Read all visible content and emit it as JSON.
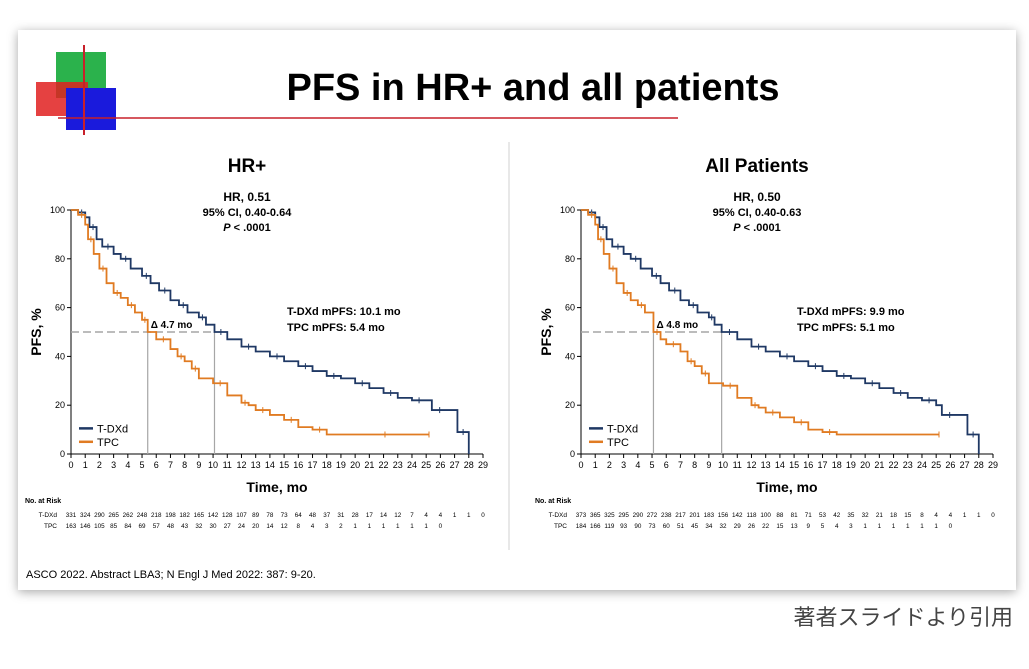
{
  "slide": {
    "title": "PFS in HR+ and all patients",
    "footnote": "ASCO 2022. Abstract LBA3; N Engl J Med 2022: 387: 9-20.",
    "colors": {
      "logo_green": "#2bb24c",
      "logo_red": "#e02020",
      "logo_blue": "#1a1adc",
      "rule": "#c8202a"
    }
  },
  "caption": "著者スライドより引用",
  "colors": {
    "tdxd": "#1f3864",
    "tpc": "#e07b22",
    "reference": "#a6a6a6",
    "text": "#000000"
  },
  "chart_data": [
    {
      "type": "line",
      "title": "HR+",
      "stats": {
        "hr": "HR, 0.51",
        "ci": "95% CI, 0.40-0.64",
        "p_label": "P",
        "p_value": " < .0001"
      },
      "xlabel": "Time, mo",
      "ylabel": "PFS, %",
      "xlim": [
        0,
        29
      ],
      "ylim": [
        0,
        100
      ],
      "xticks": [
        "0",
        "1",
        "2",
        "3",
        "4",
        "5",
        "6",
        "7",
        "8",
        "9",
        "10",
        "11",
        "12",
        "13",
        "14",
        "15",
        "16",
        "17",
        "18",
        "19",
        "20",
        "21",
        "22",
        "23",
        "24",
        "25",
        "26",
        "27",
        "28",
        "29"
      ],
      "yticks": [
        "0",
        "20",
        "40",
        "60",
        "80",
        "100"
      ],
      "legend": {
        "placement": "bottom-left",
        "entries": [
          "T-DXd",
          "TPC"
        ]
      },
      "median_text": [
        "T-DXd mPFS: 10.1 mo",
        "TPC mPFS: 5.4 mo"
      ],
      "delta_label": "Δ 4.7 mo",
      "medians": {
        "tdxd": 10.1,
        "tpc": 5.4
      },
      "series": [
        {
          "name": "T-DXd",
          "color": "#1f3864",
          "x": [
            0,
            0.5,
            1,
            1.3,
            1.8,
            2.2,
            3,
            3.5,
            4.2,
            5,
            5.6,
            6.2,
            7,
            7.6,
            8.2,
            9,
            9.5,
            10.1,
            11,
            12,
            13,
            14,
            15,
            16,
            17,
            18,
            19,
            20,
            21,
            22,
            23,
            24,
            25,
            25.4,
            26.5,
            27.2,
            28
          ],
          "y": [
            100,
            99,
            97,
            93,
            88,
            85,
            82,
            80,
            76,
            73,
            70,
            67,
            63,
            61,
            58,
            56,
            53,
            50,
            47,
            44,
            42,
            40,
            38,
            36,
            34,
            32,
            31,
            29,
            27,
            25,
            23,
            22,
            22,
            18,
            18,
            9,
            0
          ]
        },
        {
          "name": "TPC",
          "color": "#e07b22",
          "x": [
            0,
            0.5,
            1,
            1.2,
            1.6,
            2,
            2.5,
            3,
            3.5,
            4,
            4.5,
            5,
            5.4,
            6,
            7,
            7.5,
            8,
            8.5,
            9,
            10,
            11,
            12,
            12.5,
            13,
            14,
            15,
            16,
            17,
            18,
            19,
            25.2
          ],
          "y": [
            100,
            98,
            94,
            88,
            82,
            76,
            70,
            66,
            64,
            61,
            58,
            55,
            50,
            47,
            43,
            40,
            38,
            35,
            31,
            29,
            24,
            21,
            20,
            18,
            16,
            14,
            11,
            10,
            8,
            8,
            8
          ]
        }
      ],
      "risk_table": {
        "header": "No. at Risk",
        "rows": [
          {
            "label": "T-DXd",
            "values": [
              "331",
              "324",
              "290",
              "265",
              "262",
              "248",
              "218",
              "198",
              "182",
              "165",
              "142",
              "128",
              "107",
              "89",
              "78",
              "73",
              "64",
              "48",
              "37",
              "31",
              "28",
              "17",
              "14",
              "12",
              "7",
              "4",
              "4",
              "1",
              "1",
              "0"
            ]
          },
          {
            "label": "TPC",
            "values": [
              "163",
              "146",
              "105",
              "85",
              "84",
              "69",
              "57",
              "48",
              "43",
              "32",
              "30",
              "27",
              "24",
              "20",
              "14",
              "12",
              "8",
              "4",
              "3",
              "2",
              "1",
              "1",
              "1",
              "1",
              "1",
              "1",
              "0"
            ]
          }
        ]
      }
    },
    {
      "type": "line",
      "title": "All Patients",
      "stats": {
        "hr": "HR, 0.50",
        "ci": "95% CI, 0.40-0.63",
        "p_label": "P",
        "p_value": " < .0001"
      },
      "xlabel": "Time, mo",
      "ylabel": "PFS, %",
      "xlim": [
        0,
        29
      ],
      "ylim": [
        0,
        100
      ],
      "xticks": [
        "0",
        "1",
        "2",
        "3",
        "4",
        "5",
        "6",
        "7",
        "8",
        "9",
        "10",
        "11",
        "12",
        "13",
        "14",
        "15",
        "16",
        "17",
        "18",
        "19",
        "20",
        "21",
        "22",
        "23",
        "24",
        "25",
        "26",
        "27",
        "28",
        "29"
      ],
      "yticks": [
        "0",
        "20",
        "40",
        "60",
        "80",
        "100"
      ],
      "legend": {
        "placement": "bottom-left",
        "entries": [
          "T-DXd",
          "TPC"
        ]
      },
      "median_text": [
        "T-DXd mPFS: 9.9 mo",
        "TPC mPFS: 5.1 mo"
      ],
      "delta_label": "Δ 4.8 mo",
      "medians": {
        "tdxd": 9.9,
        "tpc": 5.1
      },
      "series": [
        {
          "name": "T-DXd",
          "color": "#1f3864",
          "x": [
            0,
            0.5,
            1,
            1.3,
            1.8,
            2.2,
            3,
            3.5,
            4.2,
            5,
            5.6,
            6.2,
            7,
            7.6,
            8.2,
            9,
            9.4,
            9.9,
            11,
            12,
            13,
            14,
            15,
            16,
            17,
            18,
            19,
            20,
            21,
            22,
            23,
            24,
            25,
            25.4,
            26.5,
            27.2,
            28
          ],
          "y": [
            100,
            99,
            97,
            93,
            88,
            85,
            82,
            80,
            76,
            73,
            70,
            67,
            63,
            61,
            58,
            56,
            53,
            50,
            47,
            44,
            42,
            40,
            38,
            36,
            34,
            32,
            31,
            29,
            27,
            25,
            23,
            22,
            20,
            16,
            16,
            8,
            0
          ]
        },
        {
          "name": "TPC",
          "color": "#e07b22",
          "x": [
            0,
            0.5,
            1,
            1.2,
            1.6,
            2,
            2.5,
            3,
            3.5,
            4,
            4.5,
            5.1,
            5.6,
            6,
            7,
            7.5,
            8,
            8.5,
            9,
            10,
            11,
            12,
            12.5,
            13,
            14,
            15,
            16,
            17,
            18,
            25.2
          ],
          "y": [
            100,
            98,
            94,
            88,
            82,
            76,
            70,
            66,
            63,
            61,
            58,
            50,
            47,
            45,
            42,
            38,
            36,
            33,
            29,
            28,
            23,
            20,
            19,
            17,
            15,
            13,
            10,
            9,
            8,
            8
          ]
        }
      ],
      "risk_table": {
        "header": "No. at Risk",
        "rows": [
          {
            "label": "T-DXd",
            "values": [
              "373",
              "365",
              "325",
              "295",
              "290",
              "272",
              "238",
              "217",
              "201",
              "183",
              "156",
              "142",
              "118",
              "100",
              "88",
              "81",
              "71",
              "53",
              "42",
              "35",
              "32",
              "21",
              "18",
              "15",
              "8",
              "4",
              "4",
              "1",
              "1",
              "0"
            ]
          },
          {
            "label": "TPC",
            "values": [
              "184",
              "166",
              "119",
              "93",
              "90",
              "73",
              "60",
              "51",
              "45",
              "34",
              "32",
              "29",
              "26",
              "22",
              "15",
              "13",
              "9",
              "5",
              "4",
              "3",
              "1",
              "1",
              "1",
              "1",
              "1",
              "1",
              "0"
            ]
          }
        ]
      }
    }
  ]
}
